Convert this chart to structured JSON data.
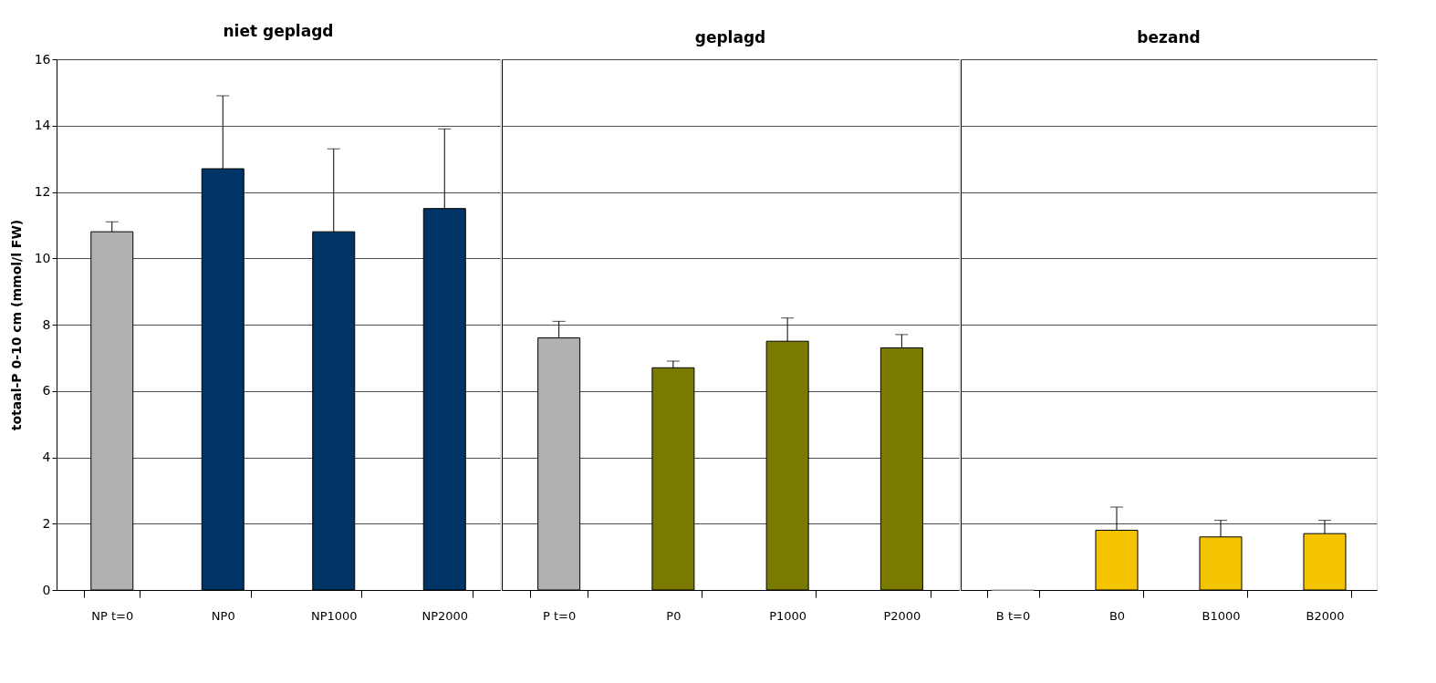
{
  "chart_data": [
    {
      "type": "bar",
      "title": "niet geplagd",
      "ylabel": "totaal-P 0-10 cm (mmol/l FW)",
      "categories": [
        "NP t=0",
        "NP0",
        "NP1000",
        "NP2000",
        null
      ],
      "values": [
        10.8,
        12.7,
        10.8,
        11.5,
        null
      ],
      "colors": [
        "#b0b0b0",
        "#003366",
        "#003366",
        "#003366",
        "#003366"
      ],
      "errors": [
        [
          10.8,
          11.1
        ],
        [
          12.7,
          14.9
        ],
        [
          10.8,
          13.3
        ],
        [
          11.5,
          13.9
        ],
        null
      ],
      "ylim": [
        0,
        16
      ],
      "yticks": [
        0,
        2,
        4,
        6,
        8,
        10,
        12,
        14,
        16
      ],
      "grid": "y"
    },
    {
      "type": "bar",
      "title": "geplagd",
      "categories": [
        "P t=0",
        "P0",
        "P1000",
        "P2000",
        null
      ],
      "values": [
        7.6,
        6.7,
        7.5,
        7.3,
        null
      ],
      "colors": [
        "#b0b0b0",
        "#7a7a00",
        "#7a7a00",
        "#7a7a00",
        "#7a7a00"
      ],
      "errors": [
        [
          7.6,
          8.1
        ],
        [
          6.7,
          6.9
        ],
        [
          7.5,
          8.2
        ],
        [
          7.3,
          7.7
        ],
        null
      ],
      "ylim": [
        0,
        16
      ],
      "yticks": [
        0,
        2,
        4,
        6,
        8,
        10,
        12,
        14,
        16
      ],
      "grid": "y",
      "tick_labels": "x"
    },
    {
      "type": "bar",
      "title": "bezand",
      "categories": [
        "B t=0",
        "B0",
        "B1000",
        "B2000"
      ],
      "values": [
        0,
        1.8,
        1.6,
        1.7
      ],
      "colors": [
        "#b0b0b0",
        "#f5c400",
        "#f5c400",
        "#f5c400"
      ],
      "errors": [
        null,
        [
          1.8,
          2.5
        ],
        [
          1.6,
          2.1
        ],
        [
          1.7,
          2.1
        ]
      ],
      "ylim": [
        0,
        16
      ],
      "yticks": [
        0,
        2,
        4,
        6,
        8,
        10,
        12,
        14,
        16
      ],
      "grid": "y",
      "tick_labels": "x"
    }
  ]
}
